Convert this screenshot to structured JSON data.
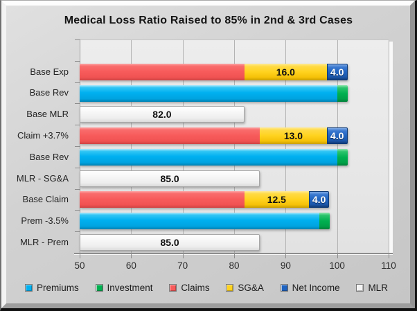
{
  "window": {
    "kind": "chart-image"
  },
  "chart_data": {
    "type": "bar",
    "orientation": "horizontal",
    "stacked": true,
    "title": "Medical Loss Ratio Raised to 85% in 2nd & 3rd Cases",
    "xlim": [
      50,
      110
    ],
    "x_ticks": [
      50,
      60,
      70,
      80,
      90,
      100,
      110
    ],
    "grid": "vertical",
    "legend_position": "bottom",
    "series_colors": {
      "Premiums": "#00B0F0",
      "Investment": "#00B050",
      "Claims": "#F75B5B",
      "SG&A": "#FFD21E",
      "Net Income": "#1F63C0",
      "MLR": "#F2F2F2"
    },
    "legend": [
      "Premiums",
      "Investment",
      "Claims",
      "SG&A",
      "Net Income",
      "MLR"
    ],
    "categories": [
      "Base Exp",
      "Base Rev",
      "Base MLR",
      "Claim +3.7%",
      "Base Rev",
      "MLR - SG&A",
      "Base Claim",
      "Prem -3.5%",
      "MLR - Prem"
    ],
    "rows": [
      {
        "label": "Base Exp",
        "segments": [
          {
            "series": "Claims",
            "start": 50,
            "end": 82,
            "label": ""
          },
          {
            "series": "SG&A",
            "start": 82,
            "end": 98,
            "label": "16.0"
          },
          {
            "series": "Net Income",
            "start": 98,
            "end": 102,
            "label": "4.0"
          }
        ]
      },
      {
        "label": "Base Rev",
        "segments": [
          {
            "series": "Premiums",
            "start": 50,
            "end": 100,
            "label": ""
          },
          {
            "series": "Investment",
            "start": 100,
            "end": 102,
            "label": ""
          }
        ]
      },
      {
        "label": "Base MLR",
        "segments": [
          {
            "series": "MLR",
            "start": 50,
            "end": 82,
            "label": "82.0"
          }
        ]
      },
      {
        "label": "Claim +3.7%",
        "segments": [
          {
            "series": "Claims",
            "start": 50,
            "end": 85,
            "label": ""
          },
          {
            "series": "SG&A",
            "start": 85,
            "end": 98,
            "label": "13.0"
          },
          {
            "series": "Net Income",
            "start": 98,
            "end": 102,
            "label": "4.0"
          }
        ]
      },
      {
        "label": "Base Rev",
        "segments": [
          {
            "series": "Premiums",
            "start": 50,
            "end": 100,
            "label": ""
          },
          {
            "series": "Investment",
            "start": 100,
            "end": 102,
            "label": ""
          }
        ]
      },
      {
        "label": "MLR - SG&A",
        "segments": [
          {
            "series": "MLR",
            "start": 50,
            "end": 85,
            "label": "85.0"
          }
        ]
      },
      {
        "label": "Base Claim",
        "segments": [
          {
            "series": "Claims",
            "start": 50,
            "end": 82,
            "label": ""
          },
          {
            "series": "SG&A",
            "start": 82,
            "end": 94.5,
            "label": "12.5"
          },
          {
            "series": "Net Income",
            "start": 94.5,
            "end": 98.5,
            "label": "4.0"
          }
        ]
      },
      {
        "label": "Prem -3.5%",
        "segments": [
          {
            "series": "Premiums",
            "start": 50,
            "end": 96.5,
            "label": ""
          },
          {
            "series": "Investment",
            "start": 96.5,
            "end": 98.5,
            "label": ""
          }
        ]
      },
      {
        "label": "MLR - Prem",
        "segments": [
          {
            "series": "MLR",
            "start": 50,
            "end": 85,
            "label": "85.0"
          }
        ]
      }
    ]
  }
}
